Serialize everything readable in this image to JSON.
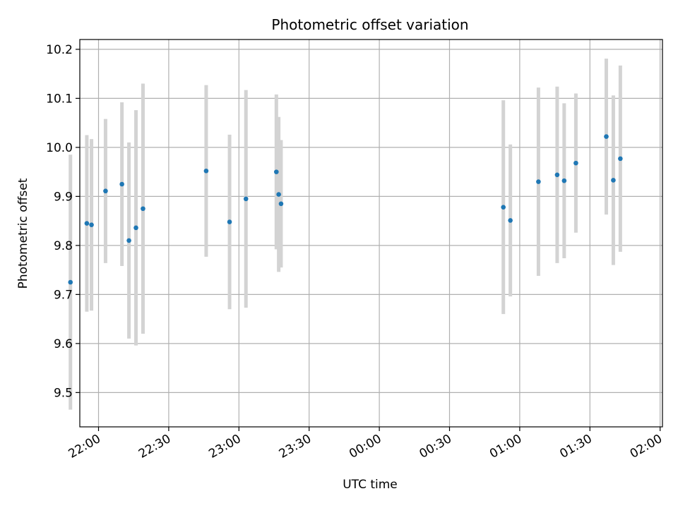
{
  "chart_data": {
    "type": "scatter",
    "title": "Photometric offset variation",
    "xlabel": "UTC time",
    "ylabel": "Photometric offset",
    "xlim": [
      "21:52",
      "02:01"
    ],
    "ylim": [
      9.43,
      10.22
    ],
    "x_ticks": [
      "22:00",
      "22:30",
      "23:00",
      "23:30",
      "00:00",
      "00:30",
      "01:00",
      "01:30",
      "02:00"
    ],
    "y_ticks": [
      "9.5",
      "9.6",
      "9.7",
      "9.8",
      "9.9",
      "10.0",
      "10.1",
      "10.2"
    ],
    "grid": true,
    "error_bar_color": "#d3d3d3",
    "point_color": "#1f77b4",
    "points": [
      {
        "x": "21:48",
        "y": 9.725,
        "err_low": 9.465,
        "err_high": 9.985
      },
      {
        "x": "21:55",
        "y": 9.845,
        "err_low": 9.665,
        "err_high": 10.025
      },
      {
        "x": "21:57",
        "y": 9.842,
        "err_low": 9.667,
        "err_high": 10.017
      },
      {
        "x": "22:03",
        "y": 9.911,
        "err_low": 9.764,
        "err_high": 10.058
      },
      {
        "x": "22:10",
        "y": 9.925,
        "err_low": 9.758,
        "err_high": 10.092
      },
      {
        "x": "22:13",
        "y": 9.81,
        "err_low": 9.61,
        "err_high": 10.01
      },
      {
        "x": "22:16",
        "y": 9.836,
        "err_low": 9.596,
        "err_high": 10.076
      },
      {
        "x": "22:19",
        "y": 9.875,
        "err_low": 9.62,
        "err_high": 10.13
      },
      {
        "x": "22:46",
        "y": 9.952,
        "err_low": 9.777,
        "err_high": 10.127
      },
      {
        "x": "22:56",
        "y": 9.848,
        "err_low": 9.67,
        "err_high": 10.026
      },
      {
        "x": "23:03",
        "y": 9.895,
        "err_low": 9.673,
        "err_high": 10.117
      },
      {
        "x": "23:16",
        "y": 9.95,
        "err_low": 9.792,
        "err_high": 10.108
      },
      {
        "x": "23:17",
        "y": 9.904,
        "err_low": 9.746,
        "err_high": 10.062
      },
      {
        "x": "23:18",
        "y": 9.885,
        "err_low": 9.755,
        "err_high": 10.015
      },
      {
        "x": "00:53",
        "y": 9.878,
        "err_low": 9.66,
        "err_high": 10.096
      },
      {
        "x": "00:56",
        "y": 9.851,
        "err_low": 9.696,
        "err_high": 10.006
      },
      {
        "x": "01:08",
        "y": 9.93,
        "err_low": 9.738,
        "err_high": 10.122
      },
      {
        "x": "01:16",
        "y": 9.944,
        "err_low": 9.764,
        "err_high": 10.124
      },
      {
        "x": "01:19",
        "y": 9.932,
        "err_low": 9.774,
        "err_high": 10.09
      },
      {
        "x": "01:24",
        "y": 9.968,
        "err_low": 9.826,
        "err_high": 10.11
      },
      {
        "x": "01:37",
        "y": 10.022,
        "err_low": 9.863,
        "err_high": 10.181
      },
      {
        "x": "01:40",
        "y": 9.933,
        "err_low": 9.76,
        "err_high": 10.106
      },
      {
        "x": "01:43",
        "y": 9.977,
        "err_low": 9.787,
        "err_high": 10.167
      }
    ]
  }
}
